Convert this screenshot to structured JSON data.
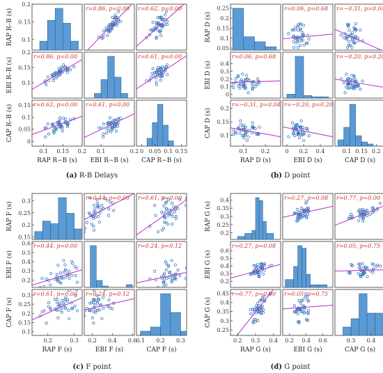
{
  "colors": {
    "hist_fill": "#5b9bd5",
    "hist_edge": "#2f5f8a",
    "point": "#2e6db4",
    "fit": "#c03ccf",
    "corr_text": "#d0312d",
    "frame": "#333333"
  },
  "chart_data": [
    {
      "type": "scatter-matrix",
      "caption": "(a) R-B Delays",
      "caption_letter": "(a)",
      "caption_text": "R-B Delays",
      "variables": [
        "RAP R–B (s)",
        "EBI R–B (s)",
        "CAP R–B (s)"
      ],
      "xlabels": [
        "RAP R−B (s)",
        "EBI R−B (s)",
        "CAP R−B (s)"
      ],
      "ylabels": [
        "RAP R–B (s)",
        "EBI R–B (s)",
        "CAP R–B (s)"
      ],
      "ranges": [
        [
          0.07,
          0.2
        ],
        [
          0.05,
          0.2
        ],
        [
          -0.02,
          0.17
        ]
      ],
      "xticks": [
        [
          "0.1",
          "0.15",
          "0.2"
        ],
        [
          "0.1",
          "0.2"
        ],
        [
          "0",
          "0.05",
          "0.1",
          "0.15"
        ]
      ],
      "yticks": [
        [
          "0.1",
          "0.15",
          "0.2"
        ],
        [
          "0.1",
          "0.15",
          "0.2"
        ],
        [
          "0",
          "0.05",
          "0.1",
          "0.15"
        ]
      ],
      "corr_labels": [
        [
          "",
          "r=0.86, p=0.00",
          "r=0.62, p=0.00"
        ],
        [
          "r=0.86, p=0.00",
          "",
          "r=0.61, p=0.00"
        ],
        [
          "r=0.62, p=0.00",
          "r=0.61, p=0.00",
          ""
        ]
      ],
      "r": [
        [
          1,
          0.86,
          0.62
        ],
        [
          0.86,
          1,
          0.61
        ],
        [
          0.62,
          0.61,
          1
        ]
      ],
      "hist": [
        {
          "edges": [
            0.09,
            0.11,
            0.13,
            0.15,
            0.17,
            0.19
          ],
          "counts": [
            3,
            10,
            14,
            9,
            3
          ]
        },
        {
          "edges": [
            0.08,
            0.1,
            0.12,
            0.14,
            0.16,
            0.18
          ],
          "counts": [
            2,
            8,
            18,
            9,
            2
          ]
        },
        {
          "edges": [
            0.02,
            0.04,
            0.06,
            0.08,
            0.1,
            0.12
          ],
          "counts": [
            3,
            9,
            16,
            8,
            2
          ]
        }
      ]
    },
    {
      "type": "scatter-matrix",
      "caption": "(b) D point",
      "caption_letter": "(b)",
      "caption_text": "D point",
      "variables": [
        "RAP D (s)",
        "EBI D (s)",
        "CAP D (s)"
      ],
      "xlabels": [
        "RAP D (s)",
        "EBI D (s)",
        "CAP D (s)"
      ],
      "ylabels": [
        "RAP D (s)",
        "EBI D (s)",
        "CAP D (s)"
      ],
      "ranges": [
        [
          0.04,
          0.27
        ],
        [
          -0.05,
          0.55
        ],
        [
          0.06,
          0.23
        ]
      ],
      "xticks": [
        [
          "0.1",
          "0.2"
        ],
        [
          "0",
          "0.2",
          "0.4"
        ],
        [
          "0.1",
          "0.15",
          "0.2"
        ]
      ],
      "yticks": [
        [
          "0.05",
          "0.1",
          "0.15",
          "0.2",
          "0.25"
        ],
        [
          "0",
          "0.1",
          "0.2",
          "0.3",
          "0.4"
        ],
        [
          "0.1",
          "0.15",
          "0.2"
        ]
      ],
      "corr_labels": [
        [
          "",
          "r=0.06, p=0.68",
          "r=−0.31, p=0.04"
        ],
        [
          "r=0.06, p=0.68",
          "",
          "r=−0.20, p=0.20"
        ],
        [
          "r=−0.31, p=0.04",
          "r=−0.20, p=0.20",
          ""
        ]
      ],
      "r": [
        [
          1,
          0.06,
          -0.31
        ],
        [
          0.06,
          1,
          -0.2
        ],
        [
          -0.31,
          -0.2,
          1
        ]
      ],
      "hist": [
        {
          "edges": [
            0.05,
            0.1,
            0.15,
            0.2,
            0.25
          ],
          "counts": [
            25,
            8,
            5,
            2
          ]
        },
        {
          "edges": [
            0.0,
            0.1,
            0.2,
            0.3,
            0.4,
            0.5
          ],
          "counts": [
            3,
            32,
            2,
            1,
            1
          ]
        },
        {
          "edges": [
            0.07,
            0.09,
            0.11,
            0.13,
            0.15,
            0.17,
            0.19
          ],
          "counts": [
            3,
            9,
            20,
            5,
            2,
            1
          ]
        }
      ]
    },
    {
      "type": "scatter-matrix",
      "caption": "(c) F point",
      "caption_letter": "(c)",
      "caption_text": "F point",
      "variables": [
        "RAP F (s)",
        "EBI F (s)",
        "CAP F (s)"
      ],
      "xlabels": [
        "RAP F (s)",
        "EBI F (s)",
        "CAP F (s)"
      ],
      "ylabels": [
        "RAP F (s)",
        "EBI F (s)",
        "CAP F (s)"
      ],
      "ranges": [
        [
          0.14,
          0.33
        ],
        [
          0.12,
          0.62
        ],
        [
          0.08,
          0.33
        ]
      ],
      "xticks": [
        [
          "0.2",
          "0.3"
        ],
        [
          "0.2",
          "0.4",
          "0.6"
        ],
        [
          "0.1",
          "0.2",
          "0.3"
        ]
      ],
      "yticks": [
        [
          "0.15",
          "0.2",
          "0.25",
          "0.3"
        ],
        [
          "0.2",
          "0.3",
          "0.4",
          "0.5",
          "0.6"
        ],
        [
          "0.1",
          "0.15",
          "0.2",
          "0.25",
          "0.3"
        ]
      ],
      "corr_labels": [
        [
          "",
          "r=0.44, p=0.00",
          "r=0.61, p=0.00"
        ],
        [
          "r=0.44, p=0.00",
          "",
          "r=0.24, p=0.12"
        ],
        [
          "r=0.61, p=0.00",
          "r=0.24, p=0.12",
          ""
        ]
      ],
      "r": [
        [
          1,
          0.44,
          0.61
        ],
        [
          0.44,
          1,
          0.24
        ],
        [
          0.61,
          0.24,
          1
        ]
      ],
      "hist": [
        {
          "edges": [
            0.15,
            0.18,
            0.21,
            0.24,
            0.27,
            0.3,
            0.33
          ],
          "counts": [
            3,
            7,
            6,
            16,
            10,
            4
          ]
        },
        {
          "edges": [
            0.18,
            0.24,
            0.3,
            0.36,
            0.42,
            0.48,
            0.54,
            0.6
          ],
          "counts": [
            30,
            5,
            1,
            0,
            0,
            0,
            2
          ]
        },
        {
          "edges": [
            0.1,
            0.15,
            0.2,
            0.25,
            0.3,
            0.33
          ],
          "counts": [
            2,
            4,
            20,
            11,
            2
          ]
        }
      ]
    },
    {
      "type": "scatter-matrix",
      "caption": "(d) G point",
      "caption_letter": "(d)",
      "caption_text": "G point",
      "variables": [
        "RAP G (s)",
        "EBI G (s)",
        "CAP G (s)"
      ],
      "xlabels": [
        "RAP G (s)",
        "EBI G (s)",
        "CAP G (s)"
      ],
      "ylabels": [
        "RAP G (s)",
        "EBI G (s)",
        "CAP G (s)"
      ],
      "ranges": [
        [
          0.16,
          0.44
        ],
        [
          0.12,
          0.72
        ],
        [
          0.22,
          0.47
        ]
      ],
      "xticks": [
        [
          "0.2",
          "0.3",
          "0.4"
        ],
        [
          "0.2",
          "0.4",
          "0.6"
        ],
        [
          "0.3",
          "0.4"
        ]
      ],
      "yticks": [
        [
          "0.2",
          "0.25",
          "0.3",
          "0.35",
          "0.4"
        ],
        [
          "0.2",
          "0.3",
          "0.4",
          "0.5",
          "0.6"
        ],
        [
          "0.25",
          "0.3",
          "0.35",
          "0.4",
          "0.45"
        ]
      ],
      "corr_labels": [
        [
          "",
          "r=0.27, p=0.08",
          "r=0.77, p=0.00"
        ],
        [
          "r=0.27, p=0.08",
          "",
          "r=0.05, p=0.75"
        ],
        [
          "r=0.77, p=0.00",
          "r=0.05, p=0.75",
          ""
        ]
      ],
      "r": [
        [
          1,
          0.27,
          0.77
        ],
        [
          0.27,
          1,
          0.05
        ],
        [
          0.77,
          0.05,
          1
        ]
      ],
      "hist": [
        {
          "edges": [
            0.2,
            0.24,
            0.28,
            0.3,
            0.32,
            0.34,
            0.36,
            0.4
          ],
          "counts": [
            1,
            2,
            3,
            14,
            13,
            6,
            2
          ]
        },
        {
          "edges": [
            0.15,
            0.25,
            0.3,
            0.35,
            0.4,
            0.45,
            0.55,
            0.65
          ],
          "counts": [
            3,
            8,
            16,
            15,
            5,
            1,
            1
          ]
        },
        {
          "edges": [
            0.26,
            0.3,
            0.34,
            0.38,
            0.42,
            0.46
          ],
          "counts": [
            3,
            6,
            15,
            8,
            8
          ]
        }
      ]
    }
  ]
}
